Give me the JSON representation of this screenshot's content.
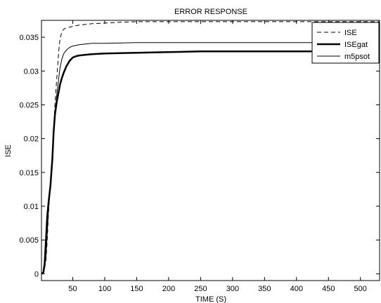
{
  "chart_data": {
    "type": "line",
    "title": "ERROR RESPONSE",
    "xlabel": "TIME (S)",
    "ylabel": "ISE",
    "xlim": [
      1,
      530
    ],
    "ylim": [
      -0.001,
      0.0375
    ],
    "xticks": [
      50,
      100,
      150,
      200,
      250,
      300,
      350,
      400,
      450,
      500
    ],
    "yticks": [
      0,
      0.005,
      0.01,
      0.015,
      0.02,
      0.025,
      0.03,
      0.035
    ],
    "grid": false,
    "legend_position": "top-right",
    "series": [
      {
        "name": "ISE",
        "style": "dashed",
        "color": "#000000",
        "x": [
          1,
          5,
          8,
          10,
          12,
          15,
          18,
          20,
          22,
          25,
          28,
          30,
          33,
          36,
          40,
          45,
          50,
          60,
          70,
          80,
          100,
          120,
          150,
          200,
          300,
          400,
          500,
          530
        ],
        "y": [
          0,
          0.0003,
          0.002,
          0.005,
          0.009,
          0.013,
          0.017,
          0.021,
          0.025,
          0.029,
          0.033,
          0.0348,
          0.0358,
          0.0362,
          0.0364,
          0.0365,
          0.0366,
          0.0368,
          0.0369,
          0.037,
          0.0371,
          0.0372,
          0.0373,
          0.0373,
          0.0373,
          0.0373,
          0.0373,
          0.0373
        ]
      },
      {
        "name": "ISEgat",
        "style": "thick",
        "color": "#000000",
        "x": [
          1,
          4,
          6,
          8,
          10,
          12,
          15,
          18,
          20,
          22,
          25,
          28,
          30,
          33,
          36,
          40,
          45,
          50,
          55,
          60,
          70,
          80,
          100,
          150,
          200,
          250,
          300,
          400,
          500,
          530
        ],
        "y": [
          0,
          0.0002,
          0.0015,
          0.005,
          0.0085,
          0.0105,
          0.013,
          0.017,
          0.021,
          0.0235,
          0.0255,
          0.027,
          0.028,
          0.029,
          0.0298,
          0.0307,
          0.0315,
          0.032,
          0.0322,
          0.0323,
          0.0324,
          0.0325,
          0.0326,
          0.0327,
          0.0328,
          0.0329,
          0.0329,
          0.0329,
          0.0329,
          0.0329
        ]
      },
      {
        "name": "m5psot",
        "style": "thin",
        "color": "#000000",
        "x": [
          1,
          5,
          8,
          10,
          12,
          15,
          18,
          20,
          22,
          25,
          28,
          30,
          33,
          36,
          40,
          45,
          50,
          60,
          70,
          80,
          100,
          150,
          200,
          300,
          400,
          500,
          530
        ],
        "y": [
          0,
          0.0003,
          0.0025,
          0.006,
          0.0095,
          0.013,
          0.017,
          0.0205,
          0.0235,
          0.0265,
          0.029,
          0.0305,
          0.0318,
          0.0326,
          0.0331,
          0.0335,
          0.0337,
          0.0339,
          0.034,
          0.0341,
          0.0341,
          0.0342,
          0.0342,
          0.0342,
          0.0342,
          0.0342,
          0.0342
        ]
      }
    ]
  }
}
